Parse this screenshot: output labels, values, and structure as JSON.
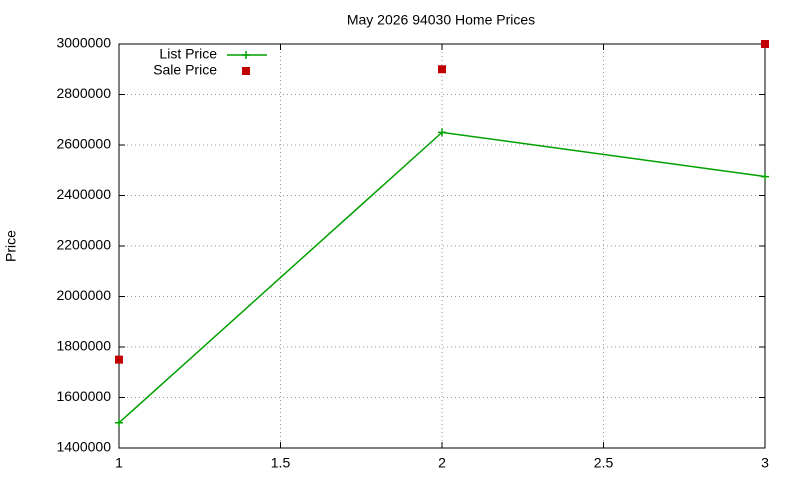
{
  "chart_data": {
    "type": "line",
    "title": "May 2026 94030 Home Prices",
    "y_label": "Price",
    "x": [
      1,
      2,
      3
    ],
    "series": [
      {
        "name": "List Price",
        "color": "#00a000",
        "mode": "linespoints",
        "values": [
          1500000,
          2650000,
          2475000
        ]
      },
      {
        "name": "Sale Price",
        "color": "#c00000",
        "mode": "points",
        "values": [
          1750000,
          2900000,
          3000000
        ]
      }
    ],
    "xlim": [
      1,
      3
    ],
    "xticks": [
      1,
      1.5,
      2,
      2.5,
      3
    ],
    "ylim": [
      1400000,
      3000000
    ],
    "yticks": [
      1400000,
      1600000,
      1800000,
      2000000,
      2200000,
      2400000,
      2600000,
      2800000,
      3000000
    ],
    "grid": true,
    "legend": "top-left"
  }
}
